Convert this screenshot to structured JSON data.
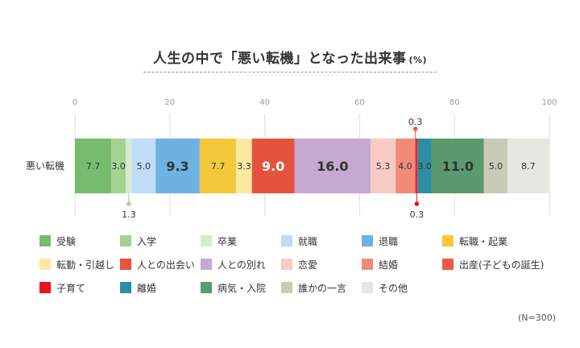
{
  "chart_data": {
    "type": "bar",
    "orientation": "horizontal",
    "stacked": true,
    "title": "人生の中で「悪い転機」となった出来事",
    "title_unit": "(%)",
    "categories": [
      "悪い転機"
    ],
    "xlim": [
      0,
      100
    ],
    "x_ticks": [
      0,
      20,
      40,
      60,
      80,
      100
    ],
    "grid": true,
    "legend_position": "bottom",
    "note": "(N=300)",
    "series": [
      {
        "name": "受験",
        "values": [
          7.7
        ],
        "label": "7.7",
        "color": "#77bb6e",
        "label_color": "#333333",
        "label_bold": false
      },
      {
        "name": "入学",
        "values": [
          3.0
        ],
        "label": "3.0",
        "color": "#a5d293",
        "label_color": "#333333",
        "label_bold": false
      },
      {
        "name": "卒業",
        "values": [
          1.3
        ],
        "label": "1.3",
        "color": "#d6ecd0",
        "label_color": "#333333",
        "label_bold": false
      },
      {
        "name": "就職",
        "values": [
          5.0
        ],
        "label": "5.0",
        "color": "#c1dcf6",
        "label_color": "#333333",
        "label_bold": false
      },
      {
        "name": "退職",
        "values": [
          9.3
        ],
        "label": "9.3",
        "color": "#6db2e2",
        "label_color": "#333333",
        "label_bold": true
      },
      {
        "name": "転職・起業",
        "values": [
          7.7
        ],
        "label": "7.7",
        "color": "#f3c93b",
        "label_color": "#333333",
        "label_bold": false
      },
      {
        "name": "転勤・引越し",
        "values": [
          3.3
        ],
        "label": "3.3",
        "color": "#fbe9a4",
        "label_color": "#333333",
        "label_bold": false
      },
      {
        "name": "人との出会い",
        "values": [
          9.0
        ],
        "label": "9.0",
        "color": "#e6533c",
        "label_color": "#ffffff",
        "label_bold": true
      },
      {
        "name": "人との別れ",
        "values": [
          16.0
        ],
        "label": "16.0",
        "color": "#c5a9d0",
        "label_color": "#333333",
        "label_bold": true
      },
      {
        "name": "恋愛",
        "values": [
          5.3
        ],
        "label": "5.3",
        "color": "#f8cbc4",
        "label_color": "#333333",
        "label_bold": false
      },
      {
        "name": "結婚",
        "values": [
          4.0
        ],
        "label": "4.0",
        "color": "#f08b7a",
        "label_color": "#333333",
        "label_bold": false
      },
      {
        "name": "出産(子どもの誕生)",
        "values": [
          0.3
        ],
        "label": "0.3",
        "color": "#ee5a47",
        "label_color": "#333333",
        "label_bold": false
      },
      {
        "name": "子育て",
        "values": [
          0.3
        ],
        "label": "0.3",
        "color": "#e8141b",
        "label_color": "#333333",
        "label_bold": false
      },
      {
        "name": "離婚",
        "values": [
          3.0
        ],
        "label": "3.0",
        "color": "#2e8ea0",
        "label_color": "#333333",
        "label_bold": false
      },
      {
        "name": "病気・入院",
        "values": [
          11.0
        ],
        "label": "11.0",
        "color": "#5a9a6e",
        "label_color": "#333333",
        "label_bold": true
      },
      {
        "name": "誰かの一言",
        "values": [
          5.0
        ],
        "label": "5.0",
        "color": "#c8cbb7",
        "label_color": "#333333",
        "label_bold": false
      },
      {
        "name": "その他",
        "values": [
          8.7
        ],
        "label": "8.7",
        "color": "#e6e7e1",
        "label_color": "#333333",
        "label_bold": false
      }
    ],
    "callouts": [
      {
        "series": "卒業",
        "text": "1.3",
        "side": "below",
        "marker_color": "#a5d293"
      },
      {
        "series": "出産(子どもの誕生)",
        "text": "0.3",
        "side": "above",
        "marker_color": "#ee5a47"
      },
      {
        "series": "子育て",
        "text": "0.3",
        "side": "below",
        "marker_color": "#e8141b"
      }
    ]
  }
}
